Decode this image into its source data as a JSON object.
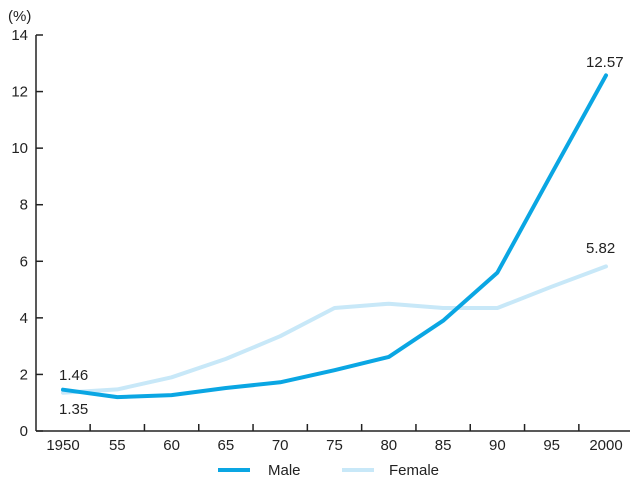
{
  "chart_data": {
    "type": "line",
    "title": "",
    "xlabel": "",
    "ylabel": "(%)",
    "x": [
      "1950",
      "55",
      "60",
      "65",
      "70",
      "75",
      "80",
      "85",
      "90",
      "95",
      "2000"
    ],
    "ylim": [
      0,
      14
    ],
    "yticks": [
      "0",
      "2",
      "4",
      "6",
      "8",
      "10",
      "12",
      "14"
    ],
    "grid": false,
    "legend": "bottom",
    "series": [
      {
        "name": "Male",
        "color": "#0aa6e3",
        "values": [
          1.46,
          1.2,
          1.27,
          1.52,
          1.72,
          2.15,
          2.62,
          3.9,
          5.6,
          9.1,
          12.57
        ]
      },
      {
        "name": "Female",
        "color": "#c8e8f8",
        "values": [
          1.35,
          1.47,
          1.9,
          2.55,
          3.35,
          4.35,
          4.5,
          4.35,
          4.35,
          5.1,
          5.82
        ]
      }
    ],
    "data_labels": [
      "1.46",
      "1.35",
      "12.57",
      "5.82"
    ]
  }
}
